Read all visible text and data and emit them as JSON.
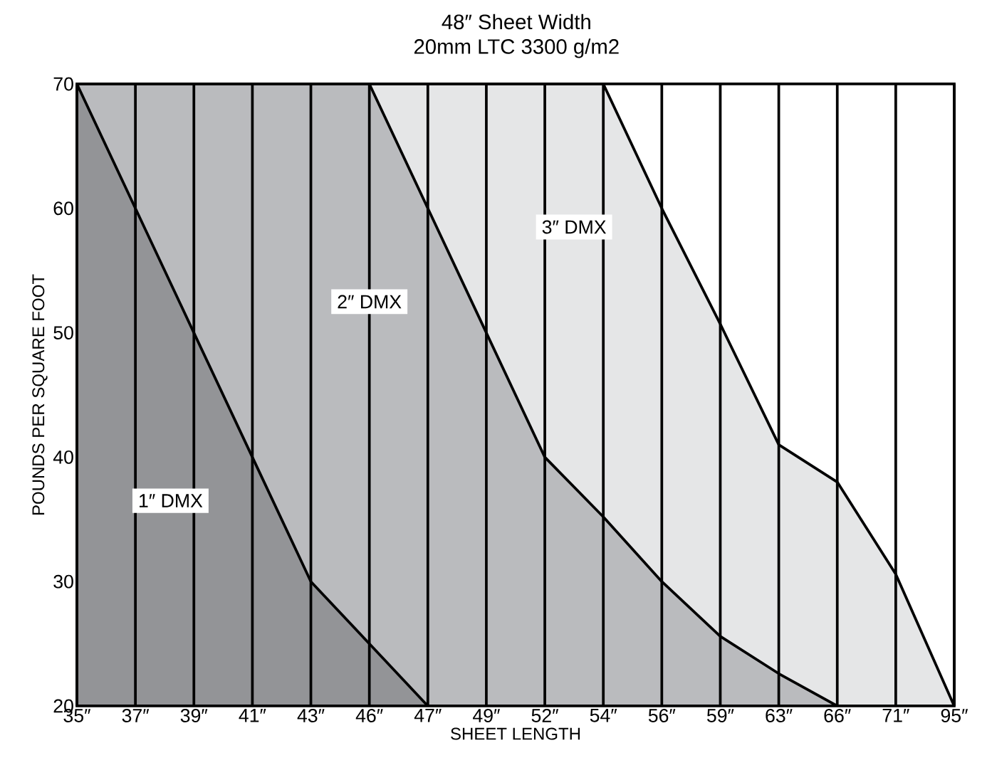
{
  "chart_data": {
    "type": "area",
    "title": "48″ Sheet Width",
    "subtitle": "20mm LTC 3300 g/m2",
    "xlabel": "SHEET LENGTH",
    "ylabel": "POUNDS PER SQUARE FOOT",
    "categories": [
      "35″",
      "37″",
      "39″",
      "41″",
      "43″",
      "46″",
      "47″",
      "49″",
      "52″",
      "54″",
      "56″",
      "59″",
      "63″",
      "66″",
      "71″",
      "95″"
    ],
    "series": [
      {
        "name": "3″ DMX",
        "color": "#e5e6e7",
        "values": [
          70,
          70,
          70,
          70,
          70,
          70,
          70,
          70,
          70,
          70,
          60,
          50.7,
          41,
          38,
          30.6,
          20
        ]
      },
      {
        "name": "2″ DMX",
        "color": "#babbbe",
        "values": [
          70,
          70,
          70,
          70,
          70,
          70,
          60,
          50,
          40,
          35.2,
          30,
          25.6,
          22.6,
          20,
          null,
          null
        ]
      },
      {
        "name": "1″ DMX",
        "color": "#939497",
        "values": [
          70,
          60,
          50,
          40,
          30,
          25,
          20,
          null,
          null,
          null,
          null,
          null,
          null,
          null,
          null,
          null
        ]
      }
    ],
    "ylim": [
      20,
      70
    ],
    "yticks": [
      20,
      30,
      40,
      50,
      60,
      70
    ],
    "grid": "x"
  }
}
